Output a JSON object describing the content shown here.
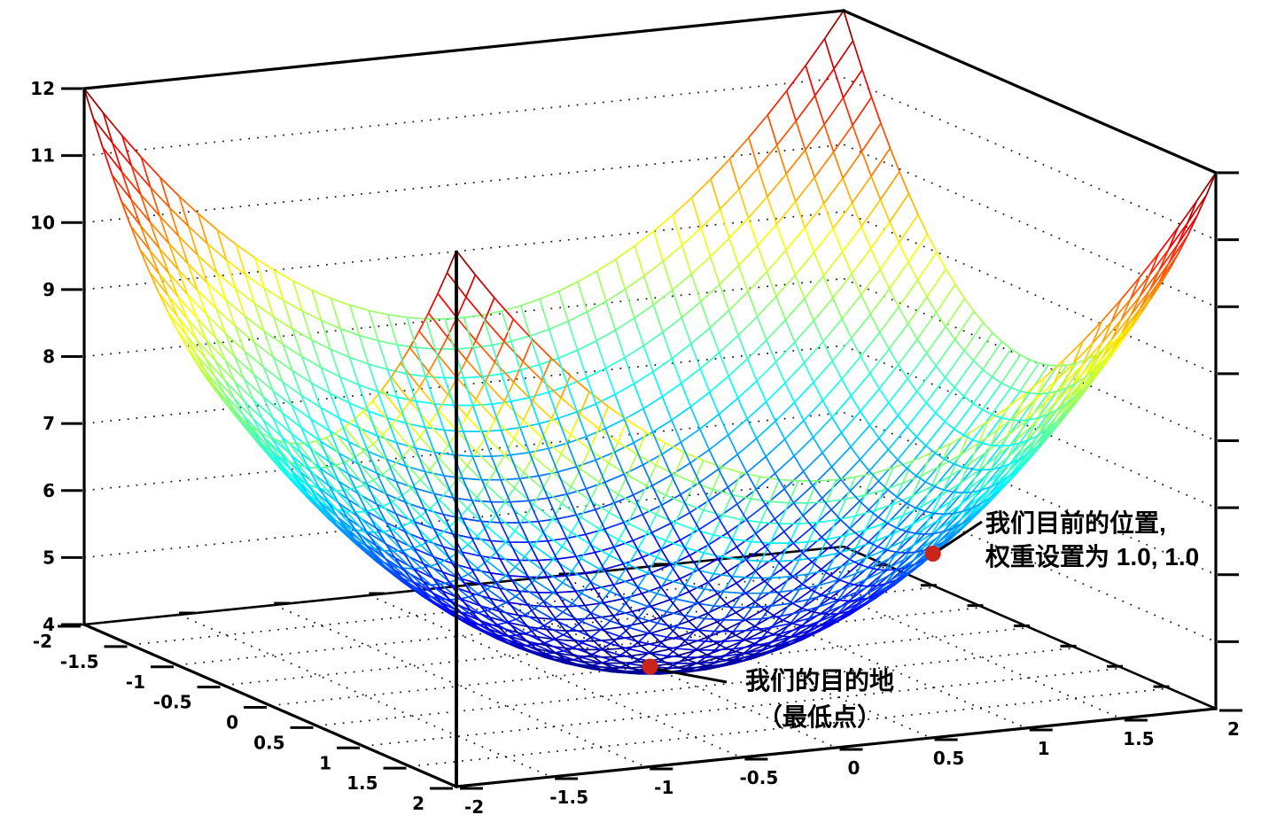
{
  "figure": {
    "background": "#ffffff",
    "border_color": "#000000",
    "grid_style": "dotted"
  },
  "chart_data": {
    "type": "3d-surface-wireframe",
    "title": "",
    "function": "z = x^2 + y^2 + 4",
    "x_domain": [
      -2,
      2
    ],
    "y_domain": [
      -2,
      2
    ],
    "mesh_step": 0.1,
    "z_range": [
      4,
      12
    ],
    "colormap": "jet",
    "colormap_low_color": "#000080",
    "colormap_high_color": "#800000",
    "grid": "dotted gridlines on floor (every 0.5 in x and y) and on back walls (every 1.0 in z)",
    "x_ticks": {
      "values": [
        -2,
        -1.5,
        -1,
        -0.5,
        0,
        0.5,
        1,
        1.5,
        2
      ],
      "labels": [
        "-2",
        "-1.5",
        "-1",
        "-0.5",
        "0",
        "0.5",
        "1",
        "1.5",
        "2"
      ]
    },
    "y_ticks": {
      "values": [
        -2,
        -1.5,
        -1,
        -0.5,
        0,
        0.5,
        1,
        1.5,
        2
      ],
      "labels": [
        "-2",
        "-1.5",
        "-1",
        "-0.5",
        "0",
        "0.5",
        "1",
        "1.5",
        "2"
      ]
    },
    "z_ticks": {
      "values": [
        4,
        5,
        6,
        7,
        8,
        9,
        10,
        11,
        12
      ],
      "labels": [
        "4",
        "5",
        "6",
        "7",
        "8",
        "9",
        "10",
        "11",
        "12"
      ]
    },
    "points": [
      {
        "name": "current-position",
        "x": 1.0,
        "y": 1.0,
        "z": 6.0,
        "marker_color": "#cb2418"
      },
      {
        "name": "destination-minimum",
        "x": 0.0,
        "y": 0.0,
        "z": 4.0,
        "marker_color": "#cb2418"
      }
    ]
  },
  "annotations": {
    "current": {
      "line1": "我们目前的位置,",
      "line2": "权重设置为 1.0, 1.0"
    },
    "destination": {
      "line1": "我们的目的地",
      "line2": "（最低点）"
    }
  }
}
